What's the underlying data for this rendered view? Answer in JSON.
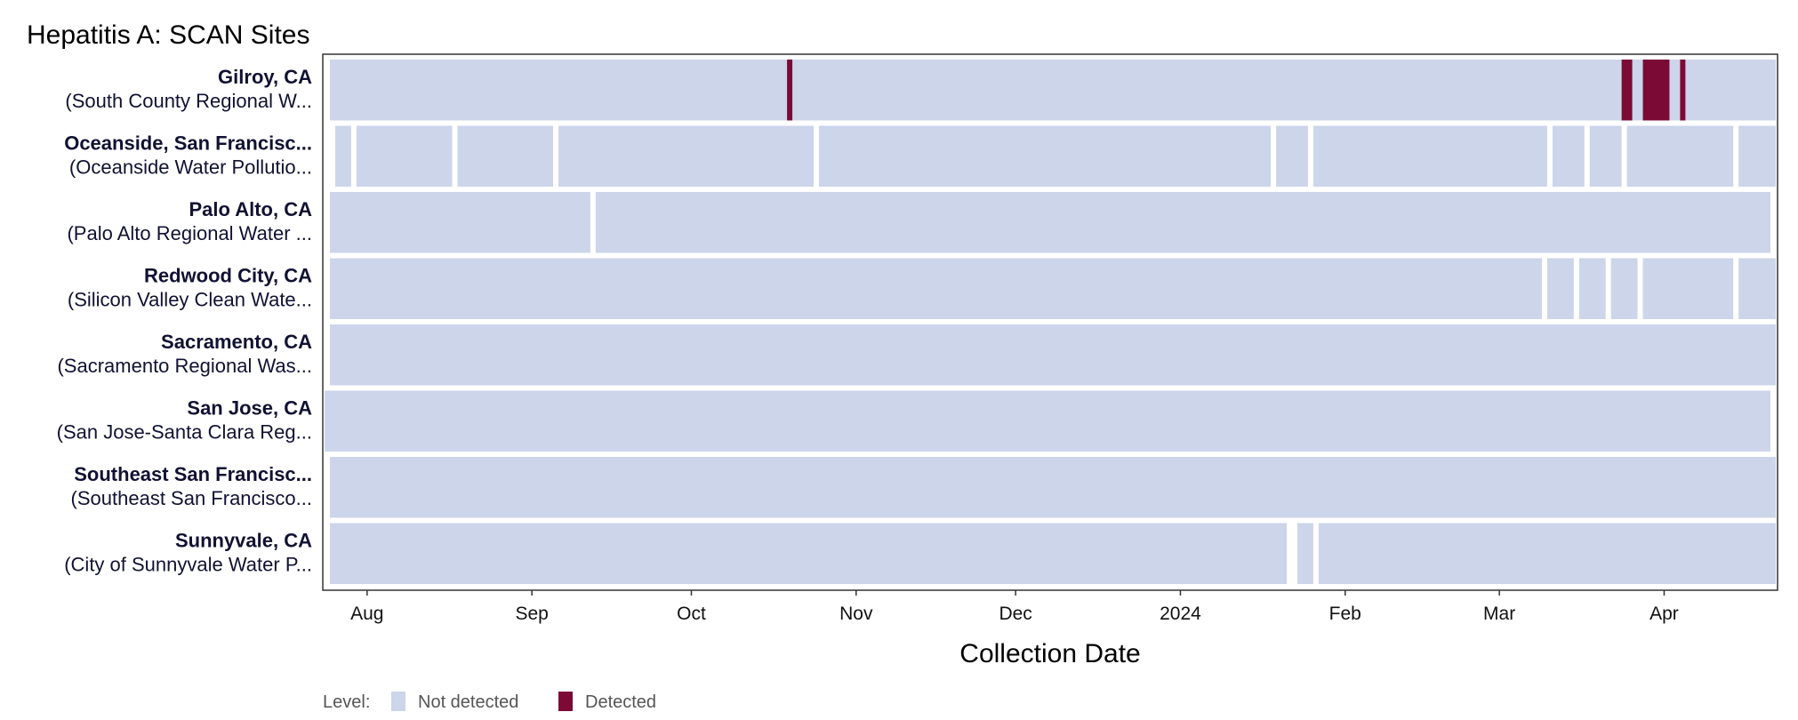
{
  "chart_data": {
    "type": "heatmap",
    "title": "Hepatitis A: SCAN Sites",
    "xlabel": "Collection Date",
    "ylabel": "",
    "x_range": [
      "2023-07-24",
      "2024-04-22"
    ],
    "x_ticks": [
      {
        "date": "2023-08-01",
        "label": "Aug"
      },
      {
        "date": "2023-09-01",
        "label": "Sep"
      },
      {
        "date": "2023-10-01",
        "label": "Oct"
      },
      {
        "date": "2023-11-01",
        "label": "Nov"
      },
      {
        "date": "2023-12-01",
        "label": "Dec"
      },
      {
        "date": "2024-01-01",
        "label": "2024"
      },
      {
        "date": "2024-02-01",
        "label": "Feb"
      },
      {
        "date": "2024-03-01",
        "label": "Mar"
      },
      {
        "date": "2024-04-01",
        "label": "Apr"
      }
    ],
    "legend": {
      "title": "Level:",
      "placement": "bottom-left",
      "entries": [
        {
          "label": "Not detected",
          "color": "#ccd5ea"
        },
        {
          "label": "Detected",
          "color": "#7b0a35"
        }
      ]
    },
    "colors": {
      "not_detected": "#ccd5ea",
      "detected": "#7b0a35"
    },
    "rows": [
      {
        "name": "Gilroy, CA",
        "plant": "(South County Regional W...",
        "sampled": [
          [
            "2023-07-25",
            "2024-04-21"
          ]
        ],
        "detected": [
          [
            "2023-10-19",
            "2023-10-19"
          ],
          [
            "2024-03-24",
            "2024-03-25"
          ],
          [
            "2024-03-28",
            "2024-04-01"
          ],
          [
            "2024-04-04",
            "2024-04-04"
          ]
        ]
      },
      {
        "name": "Oceanside, San Francisc...",
        "plant": "(Oceanside Water Pollutio...",
        "sampled": [
          [
            "2023-07-26",
            "2023-07-28"
          ],
          [
            "2023-07-30",
            "2023-08-16"
          ],
          [
            "2023-08-18",
            "2023-09-04"
          ],
          [
            "2023-09-06",
            "2023-10-23"
          ],
          [
            "2023-10-25",
            "2024-01-17"
          ],
          [
            "2024-01-19",
            "2024-01-24"
          ],
          [
            "2024-01-26",
            "2024-03-09"
          ],
          [
            "2024-03-11",
            "2024-03-16"
          ],
          [
            "2024-03-18",
            "2024-03-23"
          ],
          [
            "2024-03-25",
            "2024-04-13"
          ],
          [
            "2024-04-15",
            "2024-04-21"
          ]
        ]
      },
      {
        "name": "Palo Alto, CA",
        "plant": "(Palo Alto Regional Water ...",
        "sampled": [
          [
            "2023-07-25",
            "2023-09-11"
          ],
          [
            "2023-09-13",
            "2024-04-20"
          ]
        ]
      },
      {
        "name": "Redwood City, CA",
        "plant": "(Silicon Valley Clean Wate...",
        "sampled": [
          [
            "2023-07-25",
            "2024-03-08"
          ],
          [
            "2024-03-10",
            "2024-03-14"
          ],
          [
            "2024-03-16",
            "2024-03-20"
          ],
          [
            "2024-03-22",
            "2024-03-26"
          ],
          [
            "2024-03-28",
            "2024-04-13"
          ],
          [
            "2024-04-15",
            "2024-04-20"
          ],
          [
            "2024-04-21",
            "2024-04-21"
          ]
        ]
      },
      {
        "name": "Sacramento, CA",
        "plant": "(Sacramento Regional Was...",
        "sampled": [
          [
            "2023-07-25",
            "2024-04-21"
          ]
        ]
      },
      {
        "name": "San Jose, CA",
        "plant": "(San Jose-Santa Clara Reg...",
        "sampled": [
          [
            "2023-07-24",
            "2024-04-20"
          ]
        ]
      },
      {
        "name": "Southeast San Francisc...",
        "plant": "(Southeast San Francisco...",
        "sampled": [
          [
            "2023-07-25",
            "2024-04-21"
          ]
        ]
      },
      {
        "name": "Sunnyvale, CA",
        "plant": "(City of Sunnyvale Water P...",
        "sampled": [
          [
            "2023-07-25",
            "2024-01-20"
          ],
          [
            "2024-01-23",
            "2024-01-25"
          ],
          [
            "2024-01-27",
            "2024-04-21"
          ]
        ]
      }
    ]
  }
}
